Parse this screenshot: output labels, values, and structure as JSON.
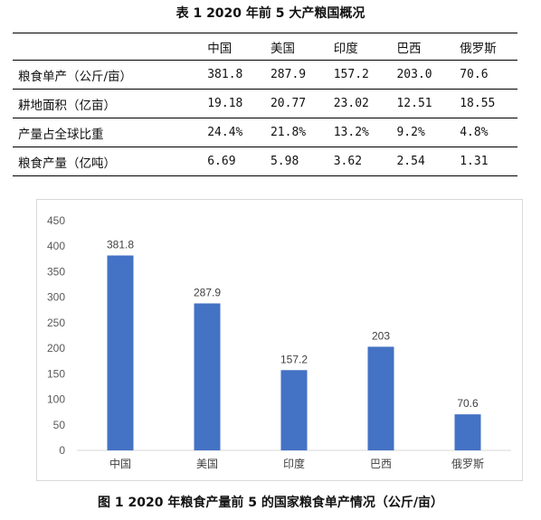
{
  "table": {
    "caption": "表 1 2020 年前 5 大产粮国概况",
    "header": [
      "",
      "中国",
      "美国",
      "印度",
      "巴西",
      "俄罗斯"
    ],
    "rows": [
      {
        "label": "粮食单产（公斤/亩）",
        "values": [
          "381.8",
          "287.9",
          "157.2",
          "203.0",
          "70.6"
        ]
      },
      {
        "label": "耕地面积（亿亩）",
        "values": [
          "19.18",
          "20.77",
          "23.02",
          "12.51",
          "18.55"
        ]
      },
      {
        "label": "产量占全球比重",
        "values": [
          "24.4%",
          "21.8%",
          "13.2%",
          "9.2%",
          "4.8%"
        ]
      },
      {
        "label": "粮食产量（亿吨）",
        "values": [
          "6.69",
          "5.98",
          "3.62",
          "2.54",
          "1.31"
        ]
      }
    ]
  },
  "figure": {
    "caption": "图 1 2020 年粮食产量前 5 的国家粮食单产情况（公斤/亩）"
  },
  "chart_data": {
    "type": "bar",
    "categories": [
      "中国",
      "美国",
      "印度",
      "巴西",
      "俄罗斯"
    ],
    "values": [
      381.8,
      287.9,
      157.2,
      203,
      70.6
    ],
    "data_labels": [
      "381.8",
      "287.9",
      "157.2",
      "203",
      "70.6"
    ],
    "ylim": [
      0,
      450
    ],
    "yticks": [
      0,
      50,
      100,
      150,
      200,
      250,
      300,
      350,
      400,
      450
    ],
    "grid": false,
    "legend": "none",
    "bar_color": "#4472c4"
  }
}
